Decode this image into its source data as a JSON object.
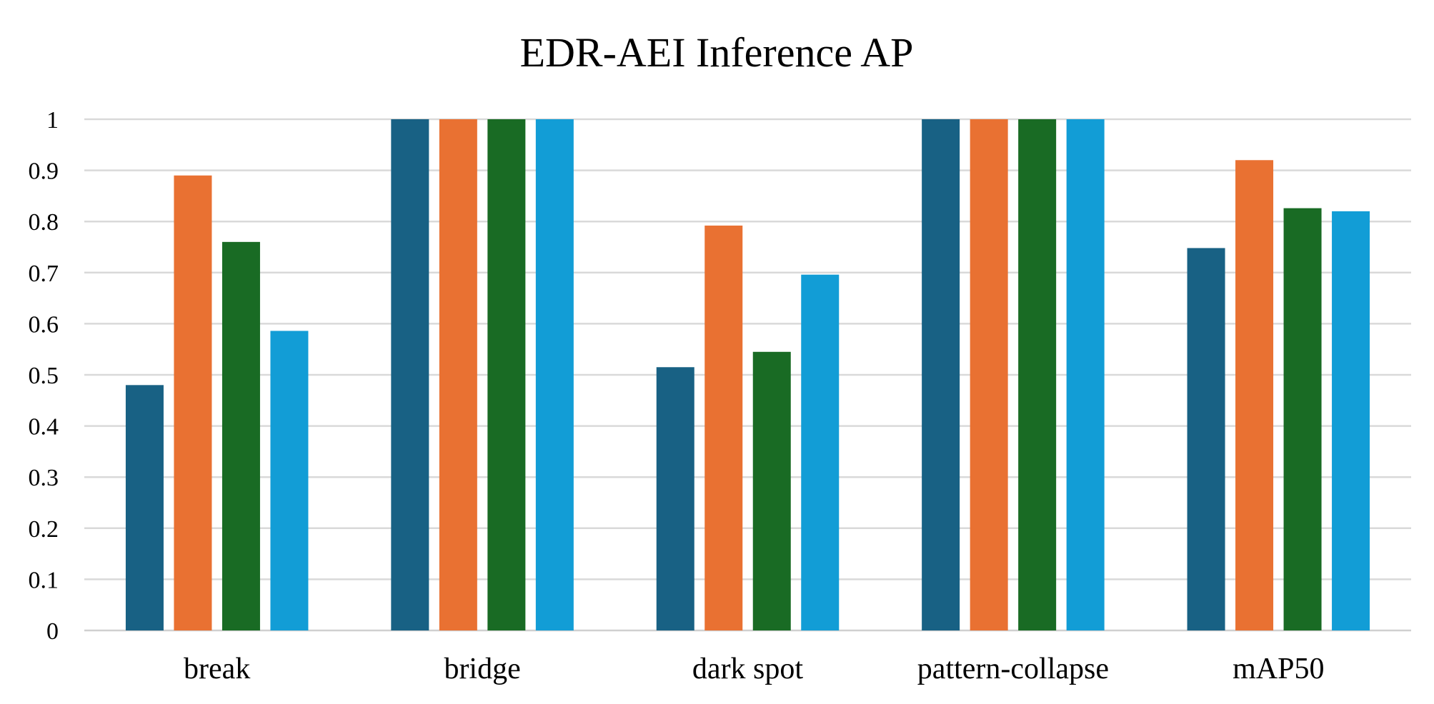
{
  "chart_data": {
    "type": "bar",
    "title": "EDR-AEI Inference AP",
    "xlabel": "",
    "ylabel": "",
    "categories": [
      "break",
      "bridge",
      "dark spot",
      "pattern-collapse",
      "mAP50"
    ],
    "series": [
      {
        "values": [
          0.48,
          1.0,
          0.515,
          1.0,
          0.748
        ],
        "color": "#186184"
      },
      {
        "values": [
          0.89,
          1.0,
          0.792,
          1.0,
          0.92
        ],
        "color": "#e97132"
      },
      {
        "values": [
          0.76,
          1.0,
          0.545,
          1.0,
          0.826
        ],
        "color": "#196b24"
      },
      {
        "values": [
          0.586,
          1.0,
          0.696,
          1.0,
          0.82
        ],
        "color": "#129dd6"
      }
    ],
    "ylim": [
      0,
      1
    ],
    "yticks": [
      "0",
      "0.1",
      "0.2",
      "0.3",
      "0.4",
      "0.5",
      "0.6",
      "0.7",
      "0.8",
      "0.9",
      "1"
    ],
    "grid": true,
    "legend": "none"
  }
}
